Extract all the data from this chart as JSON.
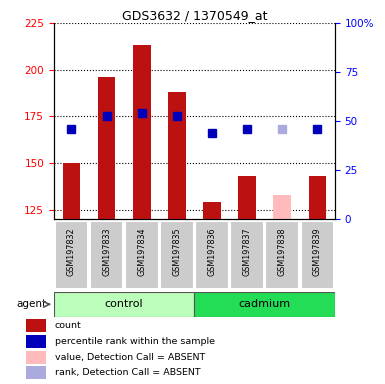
{
  "title": "GDS3632 / 1370549_at",
  "samples": [
    "GSM197832",
    "GSM197833",
    "GSM197834",
    "GSM197835",
    "GSM197836",
    "GSM197837",
    "GSM197838",
    "GSM197839"
  ],
  "bar_values": [
    150,
    196,
    213,
    188,
    129,
    143,
    null,
    143
  ],
  "bar_absent_values": [
    null,
    null,
    null,
    null,
    null,
    null,
    133,
    null
  ],
  "rank_values": [
    168,
    175,
    177,
    175,
    166,
    168,
    null,
    168
  ],
  "rank_absent_values": [
    null,
    null,
    null,
    null,
    null,
    null,
    168,
    null
  ],
  "ylim_left": [
    120,
    225
  ],
  "ylim_right": [
    0,
    100
  ],
  "yticks_left": [
    125,
    150,
    175,
    200,
    225
  ],
  "yticks_right": [
    0,
    25,
    50,
    75,
    100
  ],
  "bar_color": "#bb1111",
  "bar_absent_color": "#ffbbbb",
  "rank_color": "#0000bb",
  "rank_absent_color": "#aaaadd",
  "control_color": "#bbffbb",
  "cadmium_color": "#22dd55",
  "sample_box_color": "#cccccc",
  "legend_items": [
    {
      "label": "count",
      "color": "#bb1111"
    },
    {
      "label": "percentile rank within the sample",
      "color": "#0000bb"
    },
    {
      "label": "value, Detection Call = ABSENT",
      "color": "#ffbbbb"
    },
    {
      "label": "rank, Detection Call = ABSENT",
      "color": "#aaaadd"
    }
  ],
  "agent_label": "agent",
  "bar_width": 0.5,
  "rank_marker_size": 6
}
